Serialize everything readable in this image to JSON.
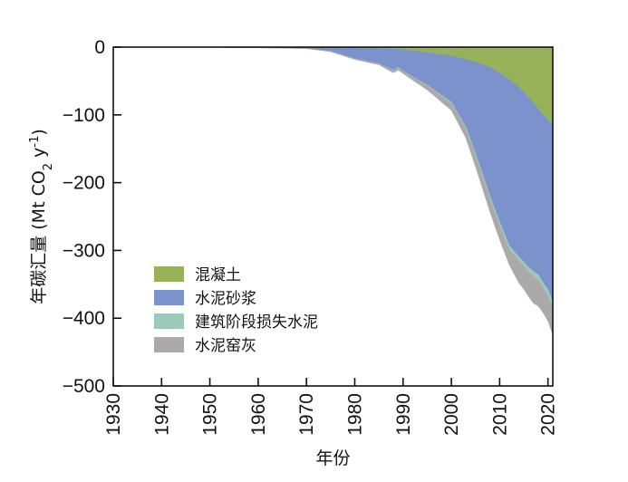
{
  "chart_data": {
    "type": "area",
    "stacked": "downward",
    "title": "",
    "xlabel": "年份",
    "ylabel_parts": {
      "main": "年碳汇量 (Mt CO",
      "sub": "2",
      "mid": " y",
      "sup": "-1",
      "end": ")"
    },
    "xlim": [
      1930,
      2021
    ],
    "ylim": [
      -500,
      0
    ],
    "xticks": [
      1930,
      1940,
      1950,
      1960,
      1970,
      1980,
      1990,
      2000,
      2010,
      2020
    ],
    "yticks": [
      0,
      -100,
      -200,
      -300,
      -400,
      -500
    ],
    "ytick_labels": [
      "0",
      "−100",
      "−200",
      "−300",
      "−400",
      "−500"
    ],
    "grid": false,
    "legend_position": "lower-left",
    "x": [
      1953,
      1960,
      1970,
      1975,
      1980,
      1985,
      1988,
      1989,
      1990,
      1991,
      1995,
      2000,
      2003,
      2005,
      2008,
      2010,
      2012,
      2014,
      2015,
      2016,
      2017,
      2018,
      2019,
      2020,
      2021
    ],
    "series": [
      {
        "name": "混凝土",
        "color": "#98b25a",
        "values": [
          0,
          0,
          0,
          0,
          -1,
          -2,
          -3,
          -3,
          -4,
          -5,
          -8,
          -13,
          -18,
          -22,
          -30,
          -38,
          -48,
          -60,
          -67,
          -75,
          -82,
          -92,
          -100,
          -108,
          -115
        ]
      },
      {
        "name": "水泥砂浆",
        "color": "#7b92cc",
        "values": [
          -0.5,
          -1,
          -2,
          -6,
          -16,
          -22,
          -31,
          -27,
          -31,
          -35,
          -48,
          -68,
          -100,
          -135,
          -190,
          -220,
          -245,
          -250,
          -250,
          -250,
          -249,
          -244,
          -248,
          -250,
          -262
        ]
      },
      {
        "name": "建筑阶段损失水泥",
        "color": "#9ccab8",
        "values": [
          0,
          0,
          0,
          0,
          0,
          0,
          -0.8,
          -0.8,
          -0.8,
          -0.9,
          -1,
          -2,
          -3,
          -4,
          -5,
          -6,
          -6,
          -6,
          -6,
          -7,
          -7,
          -8,
          -8,
          -9,
          -9
        ]
      },
      {
        "name": "水泥窑灰",
        "color": "#ada9ab",
        "values": [
          0,
          0,
          -0.3,
          -0.7,
          -1.2,
          -2,
          -3,
          -3,
          -3,
          -3,
          -6,
          -10,
          -13,
          -15,
          -18,
          -20,
          -22,
          -32,
          -34,
          -36,
          -40,
          -38,
          -36,
          -37,
          -38
        ]
      }
    ]
  }
}
